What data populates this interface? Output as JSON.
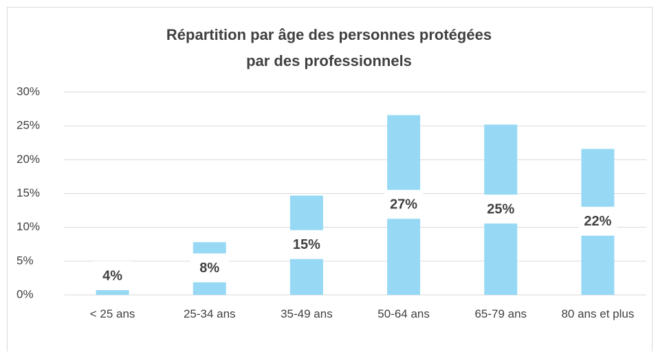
{
  "chart_data": {
    "type": "bar",
    "title": "Répartition par âge des personnes protégées\npar des professionnels",
    "categories": [
      "< 25 ans",
      "25-34 ans",
      "35-49 ans",
      "50-64 ans",
      "65-79 ans",
      "80 ans et plus"
    ],
    "values": [
      4,
      7.8,
      14.7,
      26.6,
      25.2,
      21.6
    ],
    "value_labels": [
      "4%",
      "8%",
      "15%",
      "27%",
      "25%",
      "22%"
    ],
    "color": "#97d9f5",
    "ylim": [
      0,
      30
    ],
    "yticks": [
      {
        "value": 0,
        "label": "0%"
      },
      {
        "value": 5,
        "label": "5%"
      },
      {
        "value": 10,
        "label": "10%"
      },
      {
        "value": 15,
        "label": "15%"
      },
      {
        "value": 20,
        "label": "20%"
      },
      {
        "value": 25,
        "label": "25%"
      },
      {
        "value": 30,
        "label": "30%"
      }
    ],
    "grid": true
  }
}
